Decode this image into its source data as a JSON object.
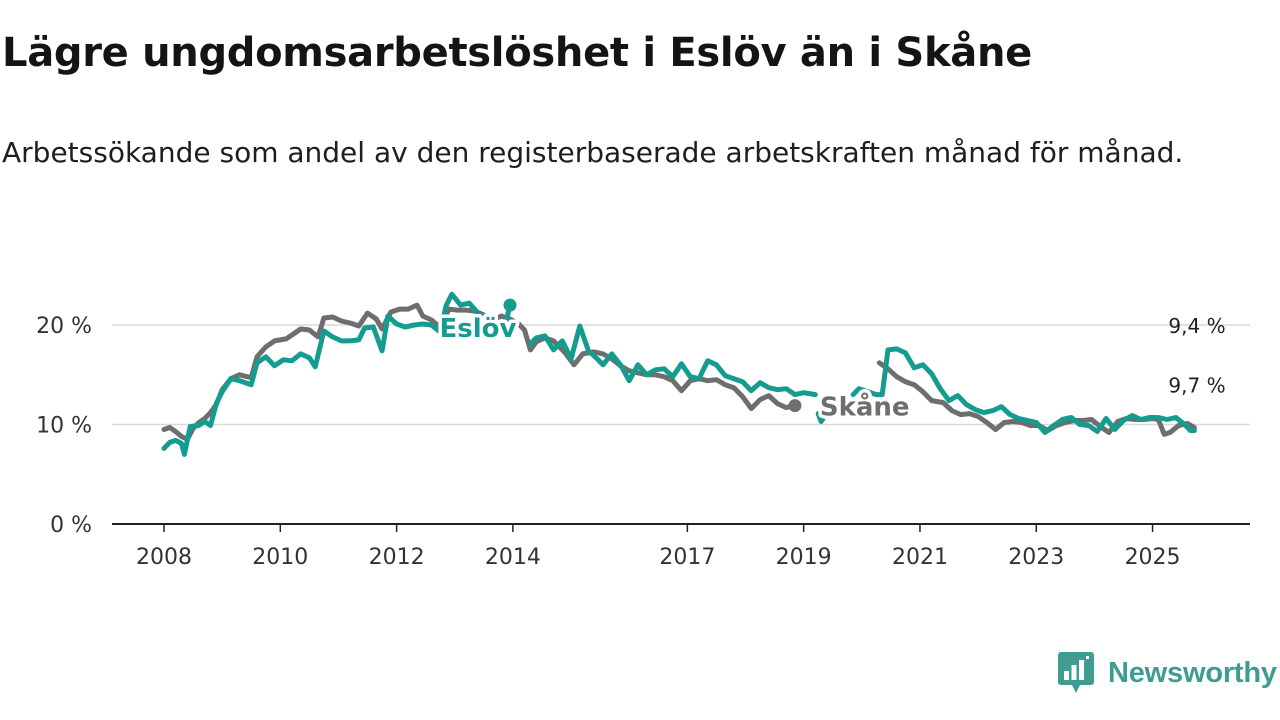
{
  "title": "Lägre ungdomsarbetslöshet i Eslöv än i Skåne",
  "subtitle": "Arbetssökande som andel av den registerbaserade arbetskraften månad för månad.",
  "brand": {
    "name": "Newsworthy",
    "icon": "newsworthy-logo-icon",
    "color": "#3e9d90"
  },
  "chart_data": {
    "type": "line",
    "x_unit": "year",
    "xlim": [
      2008,
      2025.85
    ],
    "ylim": [
      0,
      20
    ],
    "y_ticks": [
      {
        "value": 0,
        "label": "0 %"
      },
      {
        "value": 10,
        "label": "10 %"
      },
      {
        "value": 20,
        "label": "20 %"
      }
    ],
    "x_ticks": [
      {
        "value": 2008,
        "label": "2008"
      },
      {
        "value": 2010,
        "label": "2010"
      },
      {
        "value": 2012,
        "label": "2012"
      },
      {
        "value": 2014,
        "label": "2014"
      },
      {
        "value": 2017,
        "label": "2017"
      },
      {
        "value": 2019,
        "label": "2019"
      },
      {
        "value": 2021,
        "label": "2021"
      },
      {
        "value": 2023,
        "label": "2023"
      },
      {
        "value": 2025,
        "label": "2025"
      }
    ],
    "grid": "horizontal",
    "series": [
      {
        "name": "Skåne",
        "color": "#6e6e6e",
        "end_label": "9,7 %",
        "points": [
          [
            2008.0,
            9.5
          ],
          [
            2008.1,
            9.7
          ],
          [
            2008.2,
            9.3
          ],
          [
            2008.3,
            8.8
          ],
          [
            2008.4,
            8.5
          ],
          [
            2008.5,
            9.6
          ],
          [
            2008.6,
            10.2
          ],
          [
            2008.7,
            10.6
          ],
          [
            2008.8,
            11.2
          ],
          [
            2008.9,
            12.0
          ],
          [
            2009.0,
            13.5
          ],
          [
            2009.15,
            14.6
          ],
          [
            2009.3,
            15.0
          ],
          [
            2009.5,
            14.7
          ],
          [
            2009.6,
            16.8
          ],
          [
            2009.75,
            17.8
          ],
          [
            2009.9,
            18.4
          ],
          [
            2010.1,
            18.6
          ],
          [
            2010.2,
            19.0
          ],
          [
            2010.35,
            19.6
          ],
          [
            2010.5,
            19.5
          ],
          [
            2010.65,
            18.8
          ],
          [
            2010.75,
            20.7
          ],
          [
            2010.9,
            20.8
          ],
          [
            2011.05,
            20.4
          ],
          [
            2011.2,
            20.2
          ],
          [
            2011.35,
            19.9
          ],
          [
            2011.5,
            21.2
          ],
          [
            2011.65,
            20.6
          ],
          [
            2011.75,
            19.6
          ],
          [
            2011.9,
            21.3
          ],
          [
            2012.05,
            21.6
          ],
          [
            2012.2,
            21.6
          ],
          [
            2012.35,
            22.0
          ],
          [
            2012.45,
            20.9
          ],
          [
            2012.6,
            20.5
          ],
          [
            2012.7,
            20.0
          ],
          [
            2012.8,
            20.3
          ],
          [
            2012.9,
            21.6
          ],
          [
            2013.05,
            21.5
          ],
          [
            2013.2,
            21.5
          ],
          [
            2013.35,
            21.4
          ],
          [
            2013.5,
            21.0
          ],
          [
            2013.65,
            20.4
          ],
          [
            2013.8,
            20.9
          ],
          [
            2013.95,
            20.6
          ],
          [
            2014.1,
            20.1
          ],
          [
            2014.2,
            19.5
          ],
          [
            2014.3,
            17.5
          ],
          [
            2014.4,
            18.3
          ],
          [
            2014.55,
            18.7
          ],
          [
            2014.7,
            18.4
          ],
          [
            2014.9,
            17.2
          ],
          [
            2015.05,
            16.0
          ],
          [
            2015.2,
            17.1
          ],
          [
            2015.4,
            17.3
          ],
          [
            2015.55,
            17.1
          ],
          [
            2015.7,
            16.6
          ],
          [
            2015.85,
            15.9
          ],
          [
            2016.0,
            15.4
          ],
          [
            2016.15,
            15.2
          ],
          [
            2016.3,
            15.0
          ],
          [
            2016.45,
            15.0
          ],
          [
            2016.6,
            14.8
          ],
          [
            2016.75,
            14.4
          ],
          [
            2016.9,
            13.4
          ],
          [
            2017.05,
            14.4
          ],
          [
            2017.2,
            14.6
          ],
          [
            2017.35,
            14.4
          ],
          [
            2017.5,
            14.5
          ],
          [
            2017.65,
            14.0
          ],
          [
            2017.8,
            13.7
          ],
          [
            2017.95,
            12.8
          ],
          [
            2018.1,
            11.6
          ],
          [
            2018.25,
            12.5
          ],
          [
            2018.4,
            12.9
          ],
          [
            2018.55,
            12.1
          ],
          [
            2018.7,
            11.7
          ],
          [
            2018.85,
            11.9
          ]
        ]
      },
      {
        "name": "Skåne",
        "color": "#6e6e6e",
        "points": [
          [
            2020.3,
            16.2
          ],
          [
            2020.45,
            15.6
          ],
          [
            2020.6,
            14.8
          ],
          [
            2020.75,
            14.3
          ],
          [
            2020.9,
            14.0
          ],
          [
            2021.05,
            13.3
          ],
          [
            2021.2,
            12.4
          ],
          [
            2021.4,
            12.2
          ],
          [
            2021.55,
            11.4
          ],
          [
            2021.7,
            11.0
          ],
          [
            2021.85,
            11.1
          ],
          [
            2022.0,
            10.8
          ],
          [
            2022.15,
            10.2
          ],
          [
            2022.3,
            9.5
          ],
          [
            2022.45,
            10.2
          ],
          [
            2022.6,
            10.3
          ],
          [
            2022.75,
            10.2
          ],
          [
            2022.9,
            9.9
          ],
          [
            2023.05,
            9.9
          ],
          [
            2023.2,
            9.4
          ],
          [
            2023.35,
            9.9
          ],
          [
            2023.5,
            10.2
          ],
          [
            2023.65,
            10.4
          ],
          [
            2023.8,
            10.4
          ],
          [
            2023.95,
            10.5
          ],
          [
            2024.1,
            9.8
          ],
          [
            2024.25,
            9.2
          ],
          [
            2024.4,
            10.3
          ],
          [
            2024.55,
            10.6
          ],
          [
            2024.7,
            10.5
          ],
          [
            2024.85,
            10.5
          ],
          [
            2025.0,
            10.6
          ],
          [
            2025.1,
            10.5
          ],
          [
            2025.2,
            9.0
          ],
          [
            2025.3,
            9.2
          ],
          [
            2025.45,
            9.9
          ],
          [
            2025.6,
            10.1
          ],
          [
            2025.72,
            9.7
          ]
        ]
      },
      {
        "name": "Eslöv",
        "color": "#159c90",
        "end_label": "9,4 %",
        "points": [
          [
            2008.0,
            7.6
          ],
          [
            2008.1,
            8.2
          ],
          [
            2008.2,
            8.4
          ],
          [
            2008.3,
            8.1
          ],
          [
            2008.35,
            7.0
          ],
          [
            2008.45,
            9.8
          ],
          [
            2008.6,
            9.9
          ],
          [
            2008.7,
            10.3
          ],
          [
            2008.8,
            9.9
          ],
          [
            2008.9,
            12.1
          ],
          [
            2009.0,
            13.3
          ],
          [
            2009.15,
            14.6
          ],
          [
            2009.3,
            14.4
          ],
          [
            2009.5,
            14.0
          ],
          [
            2009.6,
            16.2
          ],
          [
            2009.75,
            16.8
          ],
          [
            2009.9,
            15.9
          ],
          [
            2010.05,
            16.5
          ],
          [
            2010.2,
            16.4
          ],
          [
            2010.35,
            17.1
          ],
          [
            2010.5,
            16.7
          ],
          [
            2010.6,
            15.8
          ],
          [
            2010.75,
            19.4
          ],
          [
            2010.9,
            18.8
          ],
          [
            2011.05,
            18.4
          ],
          [
            2011.2,
            18.4
          ],
          [
            2011.35,
            18.5
          ],
          [
            2011.45,
            19.7
          ],
          [
            2011.6,
            19.8
          ],
          [
            2011.75,
            17.4
          ],
          [
            2011.85,
            20.9
          ],
          [
            2012.0,
            20.1
          ],
          [
            2012.15,
            19.8
          ],
          [
            2012.3,
            20.0
          ],
          [
            2012.45,
            20.1
          ],
          [
            2012.6,
            20.0
          ],
          [
            2012.75,
            19.3
          ],
          [
            2012.85,
            21.9
          ],
          [
            2012.95,
            23.1
          ],
          [
            2013.1,
            22.0
          ],
          [
            2013.25,
            22.2
          ],
          [
            2013.4,
            21.2
          ],
          [
            2013.55,
            20.5
          ],
          [
            2013.7,
            19.6
          ],
          [
            2013.85,
            19.5
          ],
          [
            2013.95,
            22.0
          ]
        ]
      },
      {
        "name": "Eslöv",
        "color": "#159c90",
        "points": [
          [
            2014.3,
            18.1
          ],
          [
            2014.4,
            18.7
          ],
          [
            2014.55,
            18.9
          ],
          [
            2014.7,
            17.5
          ],
          [
            2014.85,
            18.4
          ],
          [
            2015.0,
            16.6
          ],
          [
            2015.15,
            19.9
          ],
          [
            2015.3,
            17.4
          ],
          [
            2015.45,
            16.6
          ],
          [
            2015.55,
            16.0
          ],
          [
            2015.7,
            17.1
          ],
          [
            2015.85,
            16.0
          ],
          [
            2016.0,
            14.4
          ],
          [
            2016.15,
            16.0
          ],
          [
            2016.3,
            15.0
          ],
          [
            2016.45,
            15.5
          ],
          [
            2016.6,
            15.6
          ],
          [
            2016.75,
            14.8
          ],
          [
            2016.9,
            16.1
          ],
          [
            2017.05,
            14.8
          ],
          [
            2017.2,
            14.6
          ],
          [
            2017.35,
            16.4
          ],
          [
            2017.5,
            16.0
          ],
          [
            2017.65,
            14.9
          ],
          [
            2017.8,
            14.6
          ],
          [
            2017.95,
            14.3
          ],
          [
            2018.1,
            13.4
          ],
          [
            2018.25,
            14.2
          ],
          [
            2018.4,
            13.7
          ],
          [
            2018.55,
            13.5
          ],
          [
            2018.7,
            13.6
          ],
          [
            2018.85,
            13.0
          ],
          [
            2019.0,
            13.2
          ],
          [
            2019.2,
            13.0
          ]
        ]
      },
      {
        "name": "Eslöv",
        "color": "#159c90",
        "points": [
          [
            2019.25,
            11.1
          ],
          [
            2019.3,
            10.3
          ],
          [
            2019.4,
            11.2
          ]
        ]
      },
      {
        "name": "Eslöv",
        "color": "#159c90",
        "points": [
          [
            2019.85,
            13.0
          ],
          [
            2019.95,
            13.6
          ],
          [
            2020.1,
            13.3
          ],
          [
            2020.25,
            13.0
          ],
          [
            2020.35,
            13.0
          ],
          [
            2020.45,
            17.5
          ],
          [
            2020.6,
            17.6
          ],
          [
            2020.75,
            17.2
          ],
          [
            2020.9,
            15.7
          ],
          [
            2021.05,
            16.0
          ],
          [
            2021.2,
            15.1
          ],
          [
            2021.35,
            13.6
          ],
          [
            2021.5,
            12.4
          ],
          [
            2021.65,
            12.9
          ],
          [
            2021.8,
            12.0
          ],
          [
            2021.95,
            11.5
          ],
          [
            2022.1,
            11.2
          ],
          [
            2022.25,
            11.4
          ],
          [
            2022.4,
            11.8
          ],
          [
            2022.55,
            11.0
          ],
          [
            2022.7,
            10.6
          ],
          [
            2022.85,
            10.4
          ],
          [
            2023.0,
            10.2
          ],
          [
            2023.15,
            9.2
          ],
          [
            2023.3,
            9.9
          ],
          [
            2023.45,
            10.5
          ],
          [
            2023.6,
            10.7
          ],
          [
            2023.75,
            10.0
          ],
          [
            2023.9,
            9.9
          ],
          [
            2024.05,
            9.3
          ],
          [
            2024.2,
            10.6
          ],
          [
            2024.35,
            9.5
          ],
          [
            2024.5,
            10.4
          ],
          [
            2024.65,
            10.9
          ],
          [
            2024.8,
            10.5
          ],
          [
            2024.95,
            10.7
          ],
          [
            2025.1,
            10.7
          ],
          [
            2025.25,
            10.5
          ],
          [
            2025.4,
            10.7
          ],
          [
            2025.55,
            10.0
          ],
          [
            2025.65,
            9.4
          ],
          [
            2025.72,
            9.4
          ]
        ]
      }
    ],
    "annotations": [
      {
        "text": "Eslöv",
        "color": "#159c90",
        "x": 2013.4,
        "y": 19.8
      },
      {
        "text": "Skåne",
        "color": "#6e6e6e",
        "x": 2020.05,
        "y": 11.9
      }
    ]
  }
}
